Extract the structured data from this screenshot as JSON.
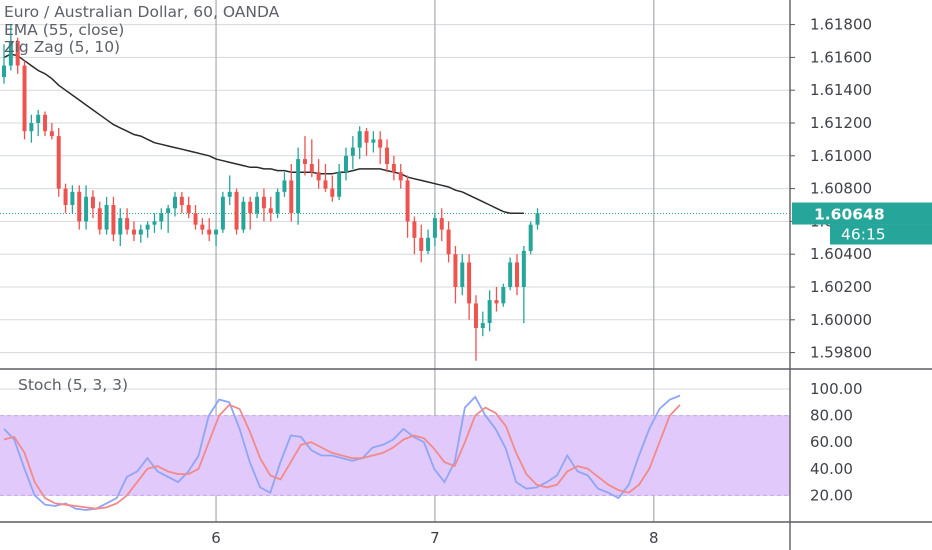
{
  "legend": {
    "symbol": "Euro / Australian Dollar, 60, OANDA",
    "ema": "EMA (55, close)",
    "zigzag": "Zig Zag (5, 10)",
    "stoch": "Stoch (5, 3, 3)"
  },
  "colors": {
    "up": "#26a69a",
    "down": "#ef5350",
    "ema": "#2b2b2b",
    "stoch_k": "#8ea6f5",
    "stoch_d": "#f28a8a",
    "stoch_band": "#e1c9fb",
    "grid": "#d6d9dd",
    "day_line": "#a7aaae",
    "price_tag": "#26a69a"
  },
  "chart_data": [
    {
      "type": "candlestick",
      "title": "Euro / Australian Dollar, 60, OANDA",
      "ylim": [
        1.597,
        1.6195
      ],
      "y_ticks": [
        "1.61800",
        "1.61600",
        "1.61400",
        "1.61200",
        "1.61000",
        "1.60800",
        "1.60600",
        "1.60400",
        "1.60200",
        "1.60000",
        "1.59800"
      ],
      "x_ticks": [
        {
          "label": "6",
          "index": 31
        },
        {
          "label": "7",
          "index": 63
        },
        {
          "label": "8",
          "index": 95
        }
      ],
      "last_price": "1.60648",
      "countdown": "46:15",
      "candles": [
        [
          1.6148,
          1.6168,
          1.6144,
          1.6155
        ],
        [
          1.6155,
          1.618,
          1.6152,
          1.617
        ],
        [
          1.617,
          1.6172,
          1.615,
          1.6155
        ],
        [
          1.6155,
          1.6158,
          1.611,
          1.6115
        ],
        [
          1.6115,
          1.6125,
          1.6108,
          1.612
        ],
        [
          1.612,
          1.6128,
          1.6112,
          1.6125
        ],
        [
          1.6125,
          1.6127,
          1.6112,
          1.6115
        ],
        [
          1.6115,
          1.612,
          1.611,
          1.6112
        ],
        [
          1.6112,
          1.6117,
          1.6075,
          1.608
        ],
        [
          1.608,
          1.6083,
          1.6065,
          1.607
        ],
        [
          1.607,
          1.6082,
          1.6065,
          1.6078
        ],
        [
          1.6078,
          1.6082,
          1.6055,
          1.606
        ],
        [
          1.606,
          1.6082,
          1.6055,
          1.6075
        ],
        [
          1.6075,
          1.6079,
          1.6062,
          1.6068
        ],
        [
          1.6068,
          1.6072,
          1.6052,
          1.6055
        ],
        [
          1.6055,
          1.6075,
          1.6052,
          1.607
        ],
        [
          1.607,
          1.6075,
          1.6048,
          1.6052
        ],
        [
          1.6052,
          1.6068,
          1.6045,
          1.6062
        ],
        [
          1.6062,
          1.6068,
          1.6052,
          1.6055
        ],
        [
          1.6055,
          1.606,
          1.6048,
          1.6052
        ],
        [
          1.6052,
          1.6058,
          1.6047,
          1.6055
        ],
        [
          1.6055,
          1.606,
          1.605,
          1.6058
        ],
        [
          1.6058,
          1.6065,
          1.6053,
          1.606
        ],
        [
          1.606,
          1.6068,
          1.6055,
          1.6065
        ],
        [
          1.6065,
          1.607,
          1.6053,
          1.6068
        ],
        [
          1.6068,
          1.6078,
          1.6063,
          1.6075
        ],
        [
          1.6075,
          1.6078,
          1.6065,
          1.607
        ],
        [
          1.607,
          1.6075,
          1.6062,
          1.6065
        ],
        [
          1.6065,
          1.607,
          1.6055,
          1.6058
        ],
        [
          1.6058,
          1.6062,
          1.6052,
          1.6055
        ],
        [
          1.6055,
          1.6062,
          1.6048,
          1.6052
        ],
        [
          1.6052,
          1.6055,
          1.6045,
          1.6055
        ],
        [
          1.6055,
          1.6078,
          1.6053,
          1.6075
        ],
        [
          1.6075,
          1.6088,
          1.607,
          1.6078
        ],
        [
          1.6078,
          1.608,
          1.6052,
          1.6055
        ],
        [
          1.6055,
          1.6075,
          1.6053,
          1.6072
        ],
        [
          1.6072,
          1.6075,
          1.6055,
          1.6065
        ],
        [
          1.6065,
          1.6078,
          1.6062,
          1.6075
        ],
        [
          1.6075,
          1.608,
          1.606,
          1.6068
        ],
        [
          1.6068,
          1.6075,
          1.606,
          1.6065
        ],
        [
          1.6065,
          1.608,
          1.6062,
          1.6078
        ],
        [
          1.6078,
          1.609,
          1.6075,
          1.6085
        ],
        [
          1.6085,
          1.6095,
          1.606,
          1.6065
        ],
        [
          1.6065,
          1.6105,
          1.6058,
          1.6098
        ],
        [
          1.6098,
          1.6112,
          1.6088,
          1.6095
        ],
        [
          1.6095,
          1.611,
          1.6087,
          1.609
        ],
        [
          1.609,
          1.6098,
          1.608,
          1.6085
        ],
        [
          1.6085,
          1.6095,
          1.6078,
          1.608
        ],
        [
          1.608,
          1.6088,
          1.6072,
          1.6075
        ],
        [
          1.6075,
          1.6095,
          1.6073,
          1.609
        ],
        [
          1.609,
          1.6105,
          1.6085,
          1.61
        ],
        [
          1.61,
          1.6112,
          1.6092,
          1.6105
        ],
        [
          1.6105,
          1.6118,
          1.6098,
          1.6115
        ],
        [
          1.6115,
          1.6117,
          1.61,
          1.6108
        ],
        [
          1.6108,
          1.6115,
          1.6102,
          1.611
        ],
        [
          1.611,
          1.6115,
          1.6095,
          1.6105
        ],
        [
          1.6105,
          1.611,
          1.609,
          1.6095
        ],
        [
          1.6095,
          1.61,
          1.6085,
          1.609
        ],
        [
          1.609,
          1.6095,
          1.608,
          1.6085
        ],
        [
          1.6085,
          1.6088,
          1.605,
          1.606
        ],
        [
          1.606,
          1.6063,
          1.604,
          1.605
        ],
        [
          1.605,
          1.6058,
          1.6035,
          1.6042
        ],
        [
          1.6042,
          1.6055,
          1.604,
          1.605
        ],
        [
          1.605,
          1.6065,
          1.6045,
          1.6062
        ],
        [
          1.6062,
          1.6068,
          1.6048,
          1.6055
        ],
        [
          1.6055,
          1.606,
          1.6035,
          1.604
        ],
        [
          1.604,
          1.6045,
          1.601,
          1.602
        ],
        [
          1.602,
          1.604,
          1.6015,
          1.6035
        ],
        [
          1.6035,
          1.604,
          1.6,
          1.601
        ],
        [
          1.601,
          1.6015,
          1.5975,
          1.5995
        ],
        [
          1.5995,
          1.6005,
          1.599,
          1.5998
        ],
        [
          1.5998,
          1.6018,
          1.5993,
          1.6012
        ],
        [
          1.6012,
          1.602,
          1.6005,
          1.601
        ],
        [
          1.601,
          1.6022,
          1.6008,
          1.602
        ],
        [
          1.602,
          1.6038,
          1.6018,
          1.6035
        ],
        [
          1.6035,
          1.604,
          1.6015,
          1.602
        ],
        [
          1.602,
          1.6045,
          1.5998,
          1.6042
        ],
        [
          1.6042,
          1.606,
          1.604,
          1.6058
        ],
        [
          1.6058,
          1.6068,
          1.6055,
          1.6065
        ]
      ],
      "ema": [
        1.616,
        1.6162,
        1.6161,
        1.6158,
        1.6155,
        1.6152,
        1.615,
        1.6147,
        1.6143,
        1.614,
        1.6137,
        1.6134,
        1.6131,
        1.6128,
        1.6125,
        1.6122,
        1.6119,
        1.6117,
        1.6115,
        1.6113,
        1.6112,
        1.611,
        1.6108,
        1.6107,
        1.6106,
        1.6105,
        1.6104,
        1.6103,
        1.6102,
        1.6101,
        1.61,
        1.6098,
        1.6097,
        1.6096,
        1.6095,
        1.6094,
        1.6093,
        1.6093,
        1.6092,
        1.6092,
        1.6091,
        1.6091,
        1.609,
        1.609,
        1.609,
        1.609,
        1.6089,
        1.6089,
        1.6089,
        1.609,
        1.609,
        1.6091,
        1.6092,
        1.6092,
        1.6092,
        1.6092,
        1.6091,
        1.609,
        1.6089,
        1.6087,
        1.6086,
        1.6085,
        1.6084,
        1.6083,
        1.6082,
        1.6081,
        1.6079,
        1.6078,
        1.6076,
        1.6074,
        1.6072,
        1.607,
        1.6068,
        1.6066,
        1.6065,
        1.6065,
        1.6065
      ]
    },
    {
      "type": "line",
      "title": "Stoch (5, 3, 3)",
      "ylim": [
        0,
        115
      ],
      "y_ticks": [
        "100.00",
        "80.00",
        "60.00",
        "40.00",
        "20.00"
      ],
      "band": [
        20,
        80
      ],
      "series": [
        {
          "values": [
            70,
            62,
            40,
            20,
            13,
            12,
            14,
            10,
            9,
            10,
            14,
            18,
            34,
            38,
            48,
            38,
            34,
            30,
            38,
            50,
            80,
            92,
            90,
            70,
            45,
            26,
            22,
            45,
            65,
            64,
            54,
            50,
            50,
            48,
            46,
            48,
            56,
            58,
            62,
            70,
            64,
            60,
            40,
            30,
            45,
            86,
            94,
            80,
            70,
            55,
            30,
            25,
            26,
            30,
            35,
            50,
            38,
            35,
            25,
            22,
            18,
            28,
            50,
            70,
            85,
            92,
            95
          ]
        },
        {
          "values": [
            62,
            64,
            52,
            30,
            18,
            14,
            13,
            12,
            11,
            10,
            11,
            14,
            20,
            30,
            40,
            42,
            38,
            36,
            36,
            40,
            60,
            80,
            88,
            85,
            68,
            48,
            35,
            32,
            45,
            58,
            60,
            56,
            52,
            50,
            48,
            48,
            50,
            52,
            56,
            62,
            65,
            63,
            55,
            45,
            42,
            60,
            80,
            86,
            82,
            72,
            52,
            36,
            28,
            26,
            28,
            38,
            42,
            40,
            34,
            28,
            24,
            22,
            28,
            40,
            60,
            80,
            88
          ]
        }
      ]
    }
  ]
}
